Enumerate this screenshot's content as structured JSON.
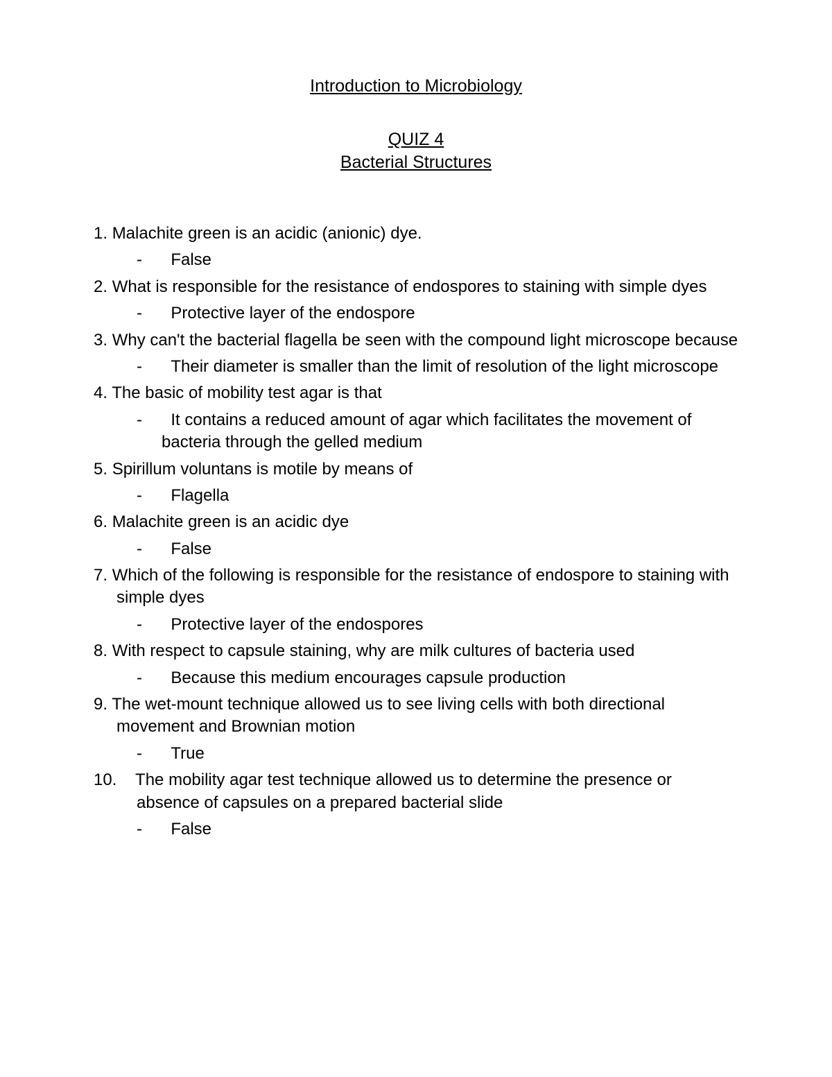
{
  "course_title": "Introduction to Microbiology",
  "quiz_number": "QUIZ 4",
  "quiz_title": "Bacterial Structures",
  "questions": [
    {
      "number": "1.",
      "text": "Malachite green is an acidic (anionic) dye.",
      "answer": "False"
    },
    {
      "number": "2.",
      "text": "What is responsible for the resistance of endospores to staining with simple dyes",
      "answer": "Protective layer of the endospore"
    },
    {
      "number": "3.",
      "text": "Why can't the bacterial flagella be seen with the compound light microscope because",
      "answer": "Their diameter is smaller than the limit of resolution of the light microscope"
    },
    {
      "number": "4.",
      "text": "The basic of mobility test agar is that",
      "answer": "It contains a reduced amount of agar which facilitates the movement of bacteria through the gelled medium"
    },
    {
      "number": "5.",
      "text": "Spirillum voluntans is motile by means of",
      "answer": "Flagella"
    },
    {
      "number": "6.",
      "text": "Malachite green is an acidic dye",
      "answer": "False"
    },
    {
      "number": "7.",
      "text": "Which of the following is responsible for the resistance of endospore to staining with simple dyes",
      "answer": "Protective layer of the endospores"
    },
    {
      "number": "8.",
      "text": "With respect to capsule staining, why are milk cultures of bacteria used",
      "answer": "Because this medium encourages capsule production"
    },
    {
      "number": "9.",
      "text": "The wet-mount technique allowed us to see living cells with both directional movement and Brownian motion",
      "answer": "True"
    },
    {
      "number": "10.",
      "text": "The mobility agar test technique allowed us to determine the presence or absence of capsules on a prepared bacterial slide",
      "answer": "False"
    }
  ],
  "colors": {
    "text": "#000000",
    "background": "#ffffff"
  },
  "typography": {
    "font_family": "Arial",
    "title_fontsize": 25,
    "body_fontsize": 24
  }
}
